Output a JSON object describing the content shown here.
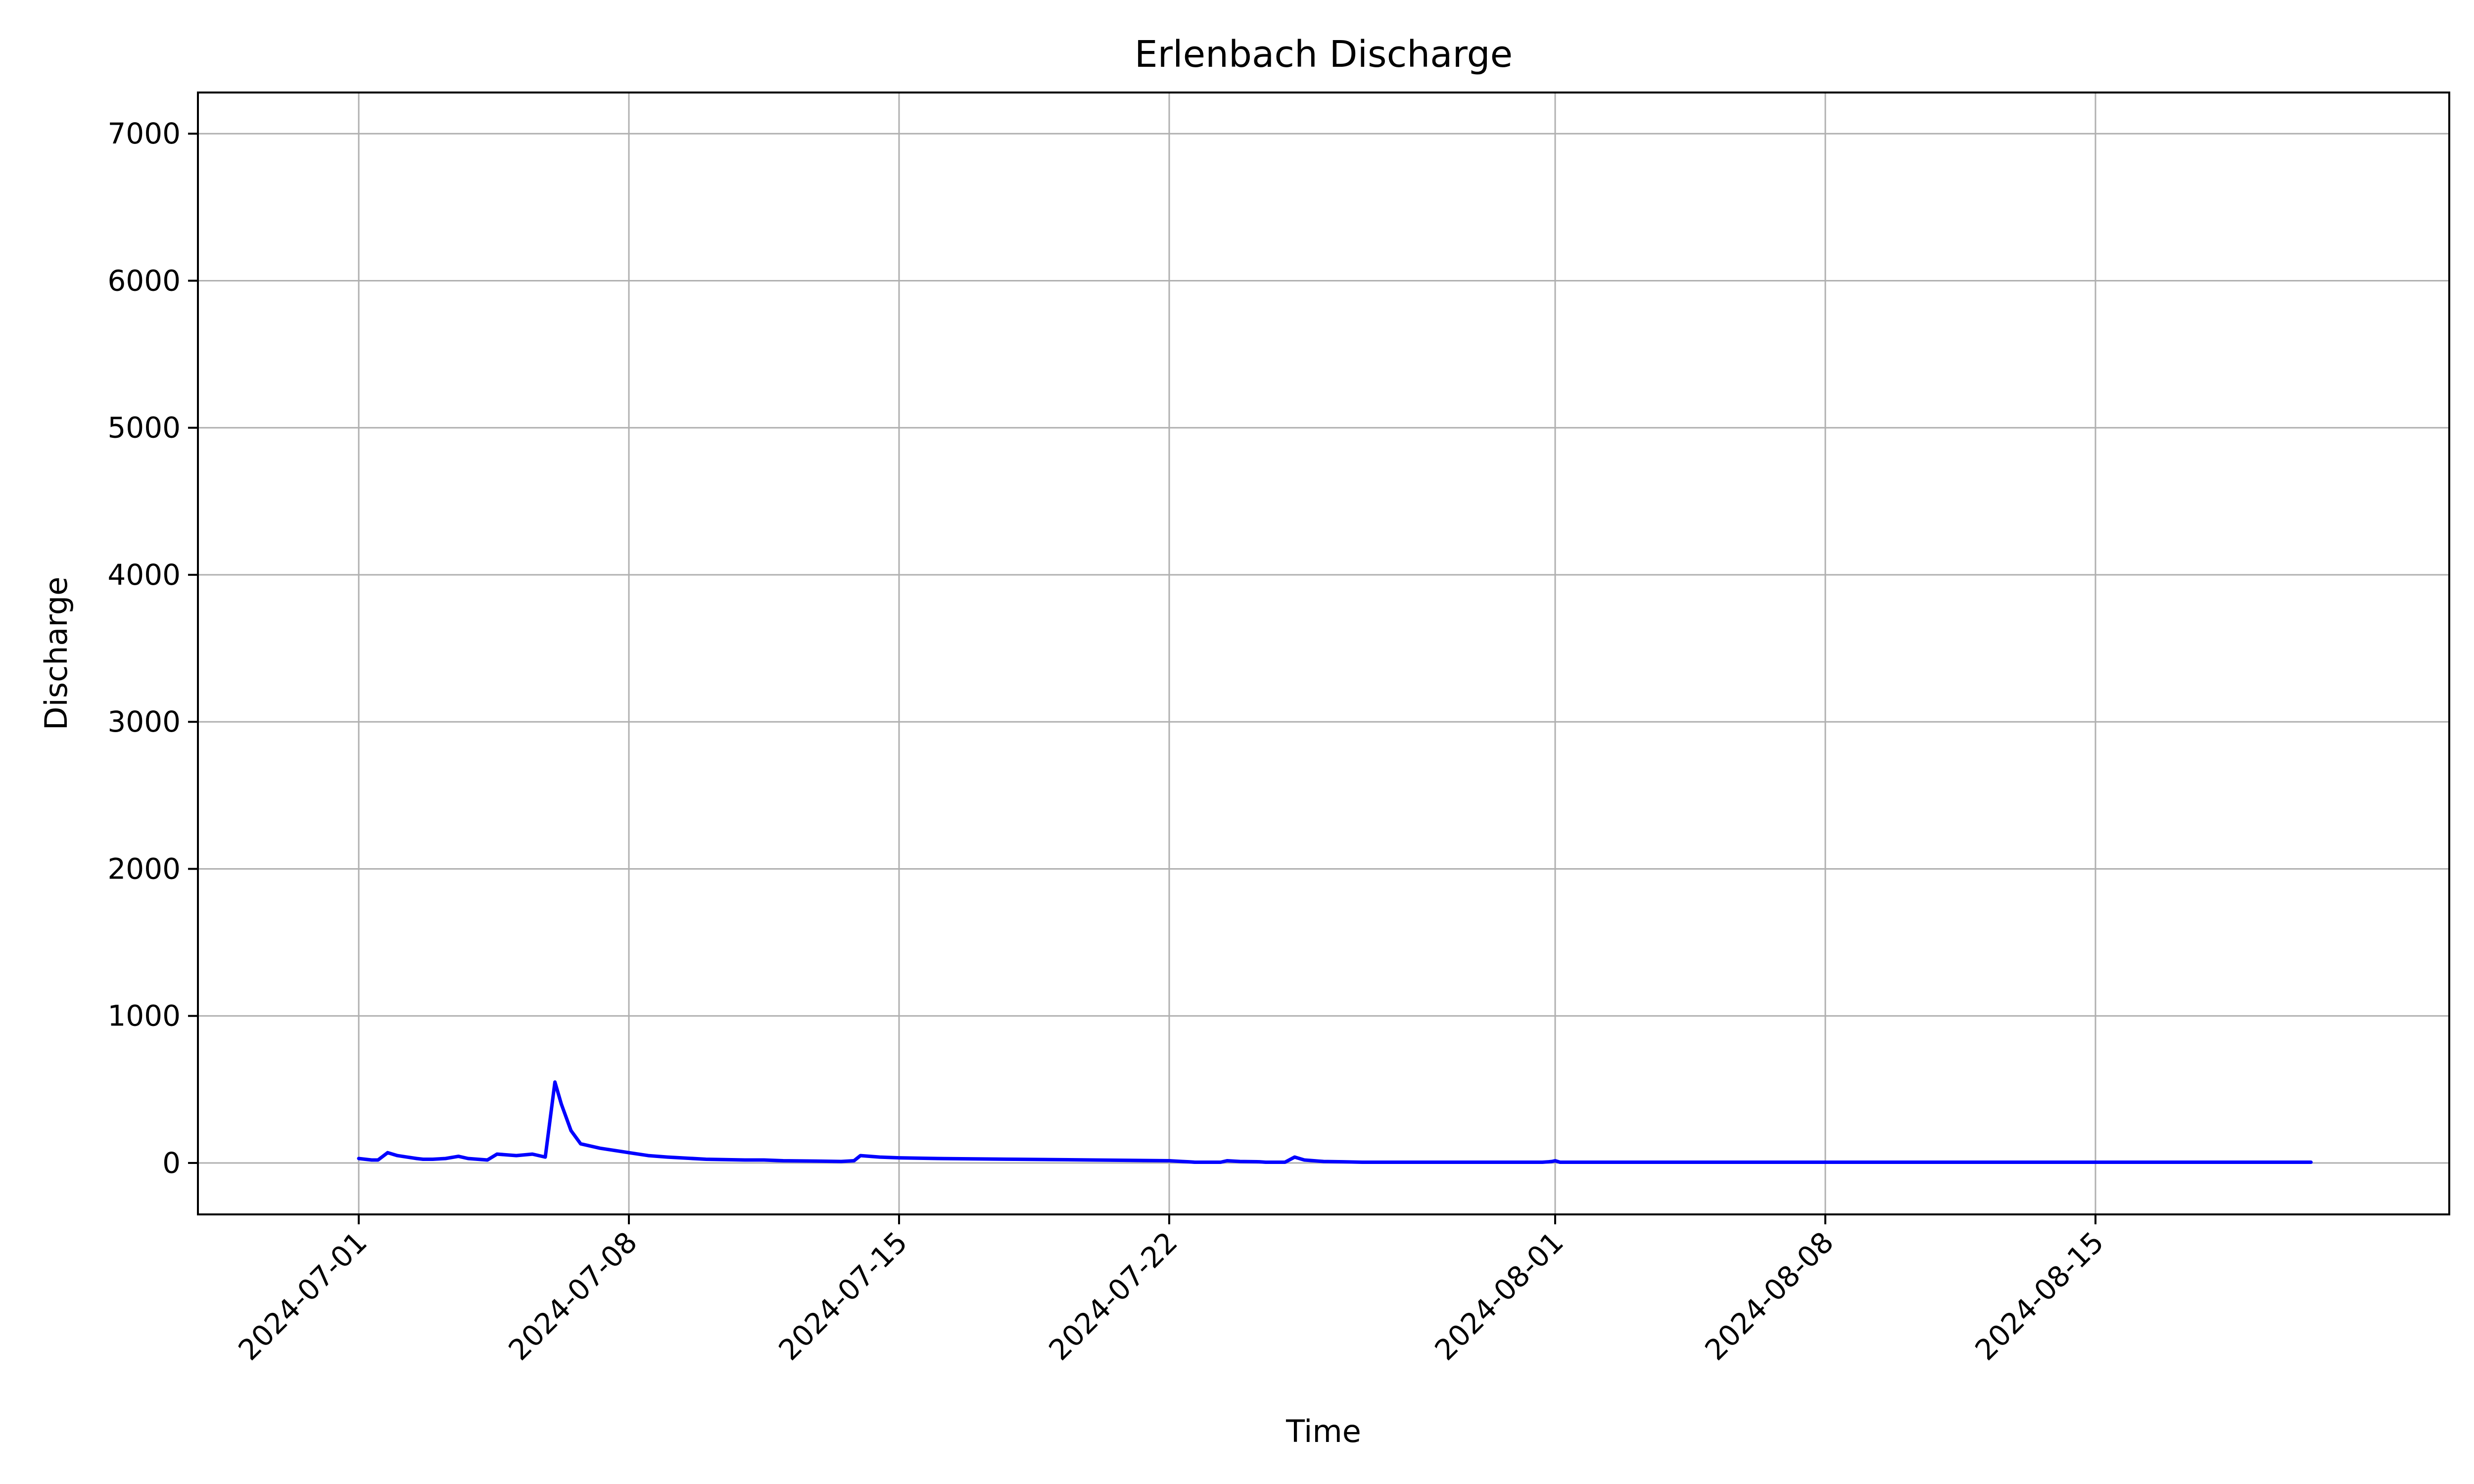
{
  "chart_data": {
    "type": "line",
    "title": "Erlenbach Discharge",
    "xlabel": "Time",
    "ylabel": "Discharge",
    "x_type": "date",
    "xlim": [
      "2024-06-26T20:00",
      "2024-08-24T04:00"
    ],
    "ylim": [
      -350,
      7280
    ],
    "x_ticks": [
      "2024-07-01",
      "2024-07-08",
      "2024-07-15",
      "2024-07-22",
      "2024-08-01",
      "2024-08-08",
      "2024-08-15"
    ],
    "y_ticks": [
      0,
      1000,
      2000,
      3000,
      4000,
      5000,
      6000,
      7000
    ],
    "grid": true,
    "legend": "none",
    "line_color": "#0000ff",
    "series": [
      {
        "x": [
          "2024-07-01T00:00",
          "2024-07-01T08:00",
          "2024-07-01T12:00",
          "2024-07-01T18:00",
          "2024-07-02T00:00",
          "2024-07-02T06:00",
          "2024-07-02T12:00",
          "2024-07-02T16:00",
          "2024-07-02T22:00",
          "2024-07-03T06:00",
          "2024-07-03T14:00",
          "2024-07-03T20:00",
          "2024-07-04T02:00",
          "2024-07-04T08:00",
          "2024-07-04T14:00",
          "2024-07-04T20:00",
          "2024-07-05T02:00",
          "2024-07-05T12:00",
          "2024-07-05T16:00",
          "2024-07-05T20:00",
          "2024-07-06T02:00",
          "2024-07-06T06:00",
          "2024-07-06T12:00",
          "2024-07-06T18:00",
          "2024-07-07T06:00",
          "2024-07-08T00:00",
          "2024-07-08T12:00",
          "2024-07-09T00:00",
          "2024-07-10T00:00",
          "2024-07-11T00:00",
          "2024-07-11T12:00",
          "2024-07-12T00:00",
          "2024-07-13T00:00",
          "2024-07-13T12:00",
          "2024-07-13T20:00",
          "2024-07-14T00:00",
          "2024-07-14T12:00",
          "2024-07-15T00:00",
          "2024-07-16T00:00",
          "2024-07-18T00:00",
          "2024-07-20T00:00",
          "2024-07-22T00:00",
          "2024-07-22T08:00",
          "2024-07-22T12:00",
          "2024-07-22T16:00",
          "2024-07-22T20:00",
          "2024-07-23T00:00",
          "2024-07-23T04:00",
          "2024-07-23T08:00",
          "2024-07-23T12:00",
          "2024-07-23T20:00",
          "2024-07-24T08:00",
          "2024-07-24T12:00",
          "2024-07-24T20:00",
          "2024-07-25T00:00",
          "2024-07-25T06:00",
          "2024-07-25T12:00",
          "2024-07-25T18:00",
          "2024-07-26T00:00",
          "2024-07-26T12:00",
          "2024-07-27T00:00",
          "2024-07-28T00:00",
          "2024-07-30T00:00",
          "2024-07-31T16:00",
          "2024-07-31T20:00",
          "2024-07-31T22:00",
          "2024-08-01T00:00",
          "2024-08-01T03:00",
          "2024-08-01T06:00",
          "2024-08-01T12:00",
          "2024-08-01T18:00",
          "2024-08-02T00:00",
          "2024-08-02T12:00",
          "2024-08-02T18:00",
          "2024-08-03T00:00",
          "2024-08-04T00:00",
          "2024-08-04T06:00",
          "2024-08-04T12:00",
          "2024-08-04T18:00",
          "2024-08-05T00:00",
          "2024-08-06T00:00",
          "2024-08-07T00:00",
          "2024-08-08T00:00",
          "2024-08-08T12:00",
          "2024-08-09T00:00",
          "2024-08-11T00:00",
          "2024-08-13T00:00",
          "2024-08-14T00:00",
          "2024-08-14T12:00",
          "2024-08-15T00:00",
          "2024-08-16T00:00",
          "2024-08-17T00:00",
          "2024-08-17T03:00",
          "2024-08-17T08:00",
          "2024-08-18T00:00",
          "2024-08-19T00:00",
          "2024-08-19T06:00",
          "2024-08-19T09:00",
          "2024-08-19T12:00",
          "2024-08-19T18:00",
          "2024-08-20T00:00",
          "2024-08-20T04:00",
          "2024-08-20T08:00",
          "2024-08-20T14:00"
        ],
        "y": [
          30,
          20,
          20,
          70,
          50,
          40,
          30,
          25,
          25,
          30,
          45,
          30,
          25,
          20,
          60,
          55,
          50,
          60,
          50,
          40,
          550,
          400,
          220,
          130,
          100,
          70,
          50,
          40,
          25,
          20,
          20,
          15,
          12,
          10,
          15,
          50,
          40,
          35,
          30,
          25,
          20,
          15,
          10,
          8,
          5,
          5,
          5,
          5,
          5,
          15,
          10,
          8,
          5,
          5,
          5,
          40,
          20,
          15,
          10,
          8,
          5,
          5,
          5,
          5,
          8,
          10,
          15,
          5,
          5,
          5,
          5,
          5,
          5,
          5,
          5,
          5,
          5,
          5,
          5,
          5,
          5,
          5,
          5,
          5,
          5,
          5,
          5,
          5,
          5,
          5,
          5,
          5,
          5,
          5,
          5,
          5,
          5,
          5,
          5,
          5,
          5,
          5,
          5,
          5
        ]
      }
    ]
  }
}
